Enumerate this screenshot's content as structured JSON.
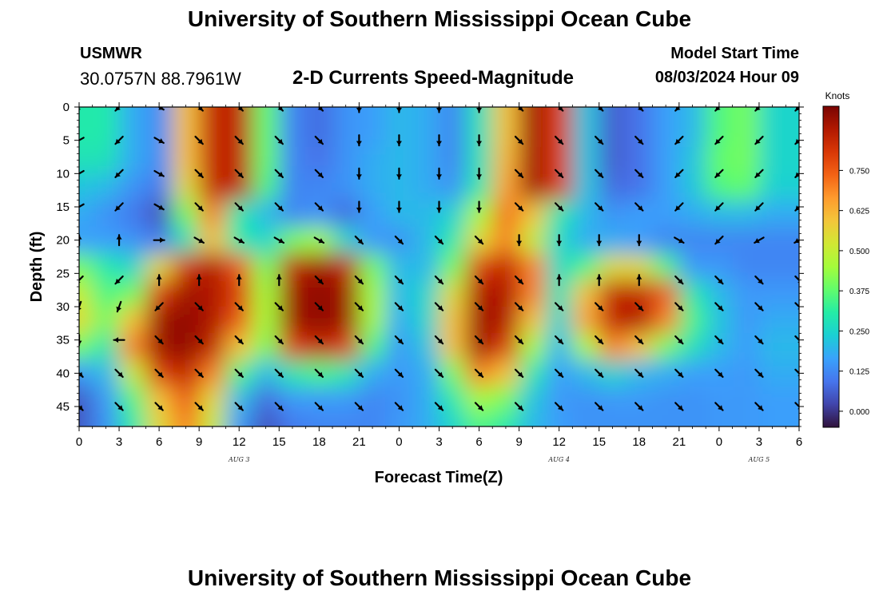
{
  "header": {
    "title": "University of Southern Mississippi Ocean Cube",
    "station_name": "USMWR",
    "station_coords": "30.0757N  88.7961W",
    "plot_title": "2-D Currents Speed-Magnitude",
    "model_label": "Model Start Time",
    "model_time": "08/03/2024 Hour 09"
  },
  "footer": {
    "title": "University of Southern Mississippi Ocean Cube"
  },
  "chart_data": {
    "type": "heatmap",
    "title": "2-D Currents Speed-Magnitude",
    "xlabel": "Forecast Time(Z)",
    "ylabel": "Depth (ft)",
    "x_ticks": [
      "0",
      "3",
      "6",
      "9",
      "12",
      "15",
      "18",
      "21",
      "0",
      "3",
      "6",
      "9",
      "12",
      "15",
      "18",
      "21",
      "0",
      "3",
      "6"
    ],
    "x_range_hours": [
      0,
      54
    ],
    "day_labels": [
      {
        "label": "AUG 3",
        "hour": 12
      },
      {
        "label": "AUG 4",
        "hour": 36
      },
      {
        "label": "AUG 5",
        "hour": 51
      }
    ],
    "y_ticks": [
      "0",
      "5",
      "10",
      "15",
      "20",
      "25",
      "30",
      "35",
      "40",
      "45"
    ],
    "y_range_ft": [
      0,
      48
    ],
    "colorbar": {
      "title": "Knots",
      "range": [
        -0.05,
        0.95
      ],
      "labels": [
        "0.000",
        "0.125",
        "0.250",
        "0.375",
        "0.500",
        "0.625",
        "0.750"
      ],
      "colors": [
        "#30123b",
        "#4145ab",
        "#4675ed",
        "#39a2fc",
        "#1bcfd4",
        "#24eca6",
        "#61fc6c",
        "#a4fc3b",
        "#d1e834",
        "#f3c63a",
        "#fe9b2d",
        "#f36315",
        "#d93806",
        "#b11901",
        "#7a0402"
      ]
    },
    "speed_knots": [
      [
        0.3,
        0.3,
        0.18,
        0.13,
        0.6,
        0.85,
        0.85,
        0.38,
        0.12,
        0.08,
        0.14,
        0.16,
        0.2,
        0.18,
        0.12,
        0.28,
        0.6,
        0.9,
        0.8,
        0.22,
        0.06,
        0.09,
        0.16,
        0.2,
        0.36,
        0.4,
        0.25
      ],
      [
        0.3,
        0.3,
        0.18,
        0.13,
        0.6,
        0.85,
        0.85,
        0.38,
        0.12,
        0.08,
        0.14,
        0.16,
        0.2,
        0.18,
        0.12,
        0.28,
        0.6,
        0.9,
        0.8,
        0.22,
        0.06,
        0.09,
        0.16,
        0.2,
        0.36,
        0.4,
        0.25
      ],
      [
        0.28,
        0.28,
        0.18,
        0.13,
        0.6,
        0.85,
        0.85,
        0.38,
        0.12,
        0.09,
        0.14,
        0.18,
        0.2,
        0.18,
        0.12,
        0.28,
        0.62,
        0.9,
        0.8,
        0.22,
        0.06,
        0.09,
        0.16,
        0.22,
        0.38,
        0.4,
        0.25
      ],
      [
        0.22,
        0.2,
        0.14,
        0.1,
        0.55,
        0.85,
        0.85,
        0.35,
        0.12,
        0.12,
        0.14,
        0.18,
        0.2,
        0.18,
        0.14,
        0.3,
        0.65,
        0.9,
        0.8,
        0.22,
        0.08,
        0.09,
        0.16,
        0.22,
        0.36,
        0.38,
        0.24
      ],
      [
        0.18,
        0.14,
        0.1,
        0.04,
        0.4,
        0.7,
        0.3,
        0.2,
        0.12,
        0.14,
        0.08,
        0.16,
        0.2,
        0.2,
        0.24,
        0.45,
        0.72,
        0.6,
        0.3,
        0.2,
        0.14,
        0.16,
        0.16,
        0.18,
        0.2,
        0.2,
        0.18
      ],
      [
        0.16,
        0.16,
        0.14,
        0.1,
        0.28,
        0.6,
        0.3,
        0.25,
        0.4,
        0.45,
        0.25,
        0.15,
        0.14,
        0.2,
        0.3,
        0.55,
        0.7,
        0.5,
        0.26,
        0.18,
        0.18,
        0.16,
        0.12,
        0.12,
        0.12,
        0.12,
        0.12
      ],
      [
        0.4,
        0.3,
        0.25,
        0.55,
        0.82,
        0.88,
        0.75,
        0.4,
        0.85,
        0.9,
        0.85,
        0.4,
        0.2,
        0.2,
        0.4,
        0.8,
        0.85,
        0.7,
        0.26,
        0.35,
        0.55,
        0.55,
        0.35,
        0.15,
        0.15,
        0.12,
        0.12
      ],
      [
        0.5,
        0.35,
        0.4,
        0.8,
        0.9,
        0.88,
        0.8,
        0.45,
        0.9,
        0.92,
        0.9,
        0.45,
        0.2,
        0.25,
        0.55,
        0.88,
        0.88,
        0.7,
        0.28,
        0.6,
        0.85,
        0.85,
        0.75,
        0.3,
        0.2,
        0.15,
        0.15
      ],
      [
        0.55,
        0.4,
        0.6,
        0.9,
        0.92,
        0.88,
        0.75,
        0.45,
        0.9,
        0.92,
        0.9,
        0.45,
        0.18,
        0.25,
        0.6,
        0.9,
        0.88,
        0.6,
        0.25,
        0.65,
        0.85,
        0.88,
        0.7,
        0.35,
        0.22,
        0.15,
        0.18
      ],
      [
        0.4,
        0.3,
        0.7,
        0.9,
        0.92,
        0.85,
        0.6,
        0.4,
        0.8,
        0.85,
        0.8,
        0.35,
        0.15,
        0.22,
        0.6,
        0.9,
        0.8,
        0.45,
        0.2,
        0.45,
        0.7,
        0.6,
        0.4,
        0.28,
        0.2,
        0.16,
        0.2
      ],
      [
        0.15,
        0.2,
        0.5,
        0.8,
        0.85,
        0.7,
        0.35,
        0.2,
        0.3,
        0.35,
        0.3,
        0.18,
        0.15,
        0.18,
        0.4,
        0.7,
        0.6,
        0.3,
        0.16,
        0.2,
        0.25,
        0.2,
        0.18,
        0.16,
        0.16,
        0.15,
        0.18
      ],
      [
        0.05,
        0.15,
        0.35,
        0.6,
        0.75,
        0.55,
        0.2,
        0.08,
        0.15,
        0.15,
        0.15,
        0.12,
        0.14,
        0.18,
        0.3,
        0.45,
        0.4,
        0.22,
        0.15,
        0.14,
        0.15,
        0.15,
        0.14,
        0.14,
        0.15,
        0.15,
        0.16
      ],
      [
        0.05,
        0.14,
        0.3,
        0.55,
        0.7,
        0.5,
        0.15,
        0.04,
        0.1,
        0.12,
        0.12,
        0.12,
        0.15,
        0.18,
        0.25,
        0.35,
        0.3,
        0.2,
        0.16,
        0.14,
        0.14,
        0.14,
        0.14,
        0.14,
        0.15,
        0.15,
        0.16
      ]
    ],
    "speed_depths_ft": [
      0,
      4,
      8,
      12,
      16,
      20,
      24,
      28,
      32,
      36,
      40,
      44,
      48
    ],
    "speed_hours_step": 2,
    "vectors": {
      "hours": [
        0,
        3,
        6,
        9,
        12,
        15,
        18,
        21,
        24,
        27,
        30,
        33,
        36,
        39,
        42,
        45,
        48,
        51,
        54
      ],
      "depths_ft": [
        0,
        5,
        10,
        15,
        20,
        26,
        30,
        35,
        40,
        45
      ],
      "angles_deg": [
        [
          220,
          225,
          120,
          135,
          135,
          135,
          135,
          180,
          180,
          180,
          180,
          135,
          135,
          135,
          135,
          225,
          225,
          225,
          225
        ],
        [
          240,
          225,
          120,
          135,
          135,
          135,
          135,
          180,
          180,
          180,
          180,
          135,
          135,
          135,
          135,
          225,
          225,
          225,
          225
        ],
        [
          240,
          225,
          120,
          135,
          135,
          135,
          135,
          180,
          180,
          180,
          180,
          135,
          135,
          135,
          135,
          225,
          225,
          225,
          225
        ],
        [
          240,
          225,
          120,
          135,
          135,
          135,
          135,
          180,
          180,
          180,
          180,
          135,
          135,
          135,
          135,
          225,
          225,
          225,
          225
        ],
        [
          0,
          0,
          90,
          120,
          120,
          120,
          120,
          135,
          135,
          135,
          135,
          180,
          180,
          180,
          180,
          120,
          225,
          240,
          240
        ],
        [
          225,
          225,
          0,
          0,
          0,
          0,
          135,
          135,
          135,
          135,
          135,
          135,
          0,
          0,
          0,
          135,
          135,
          135,
          135
        ],
        [
          200,
          200,
          225,
          135,
          135,
          135,
          135,
          135,
          135,
          135,
          135,
          135,
          135,
          135,
          135,
          135,
          135,
          135,
          135
        ],
        [
          180,
          270,
          135,
          135,
          135,
          135,
          135,
          135,
          135,
          135,
          135,
          135,
          135,
          135,
          135,
          135,
          135,
          135,
          135
        ],
        [
          135,
          135,
          135,
          135,
          135,
          135,
          135,
          135,
          135,
          135,
          135,
          135,
          135,
          135,
          135,
          135,
          135,
          135,
          135
        ],
        [
          135,
          135,
          135,
          135,
          135,
          135,
          135,
          135,
          135,
          135,
          135,
          135,
          135,
          135,
          135,
          135,
          135,
          135,
          135
        ]
      ]
    }
  }
}
